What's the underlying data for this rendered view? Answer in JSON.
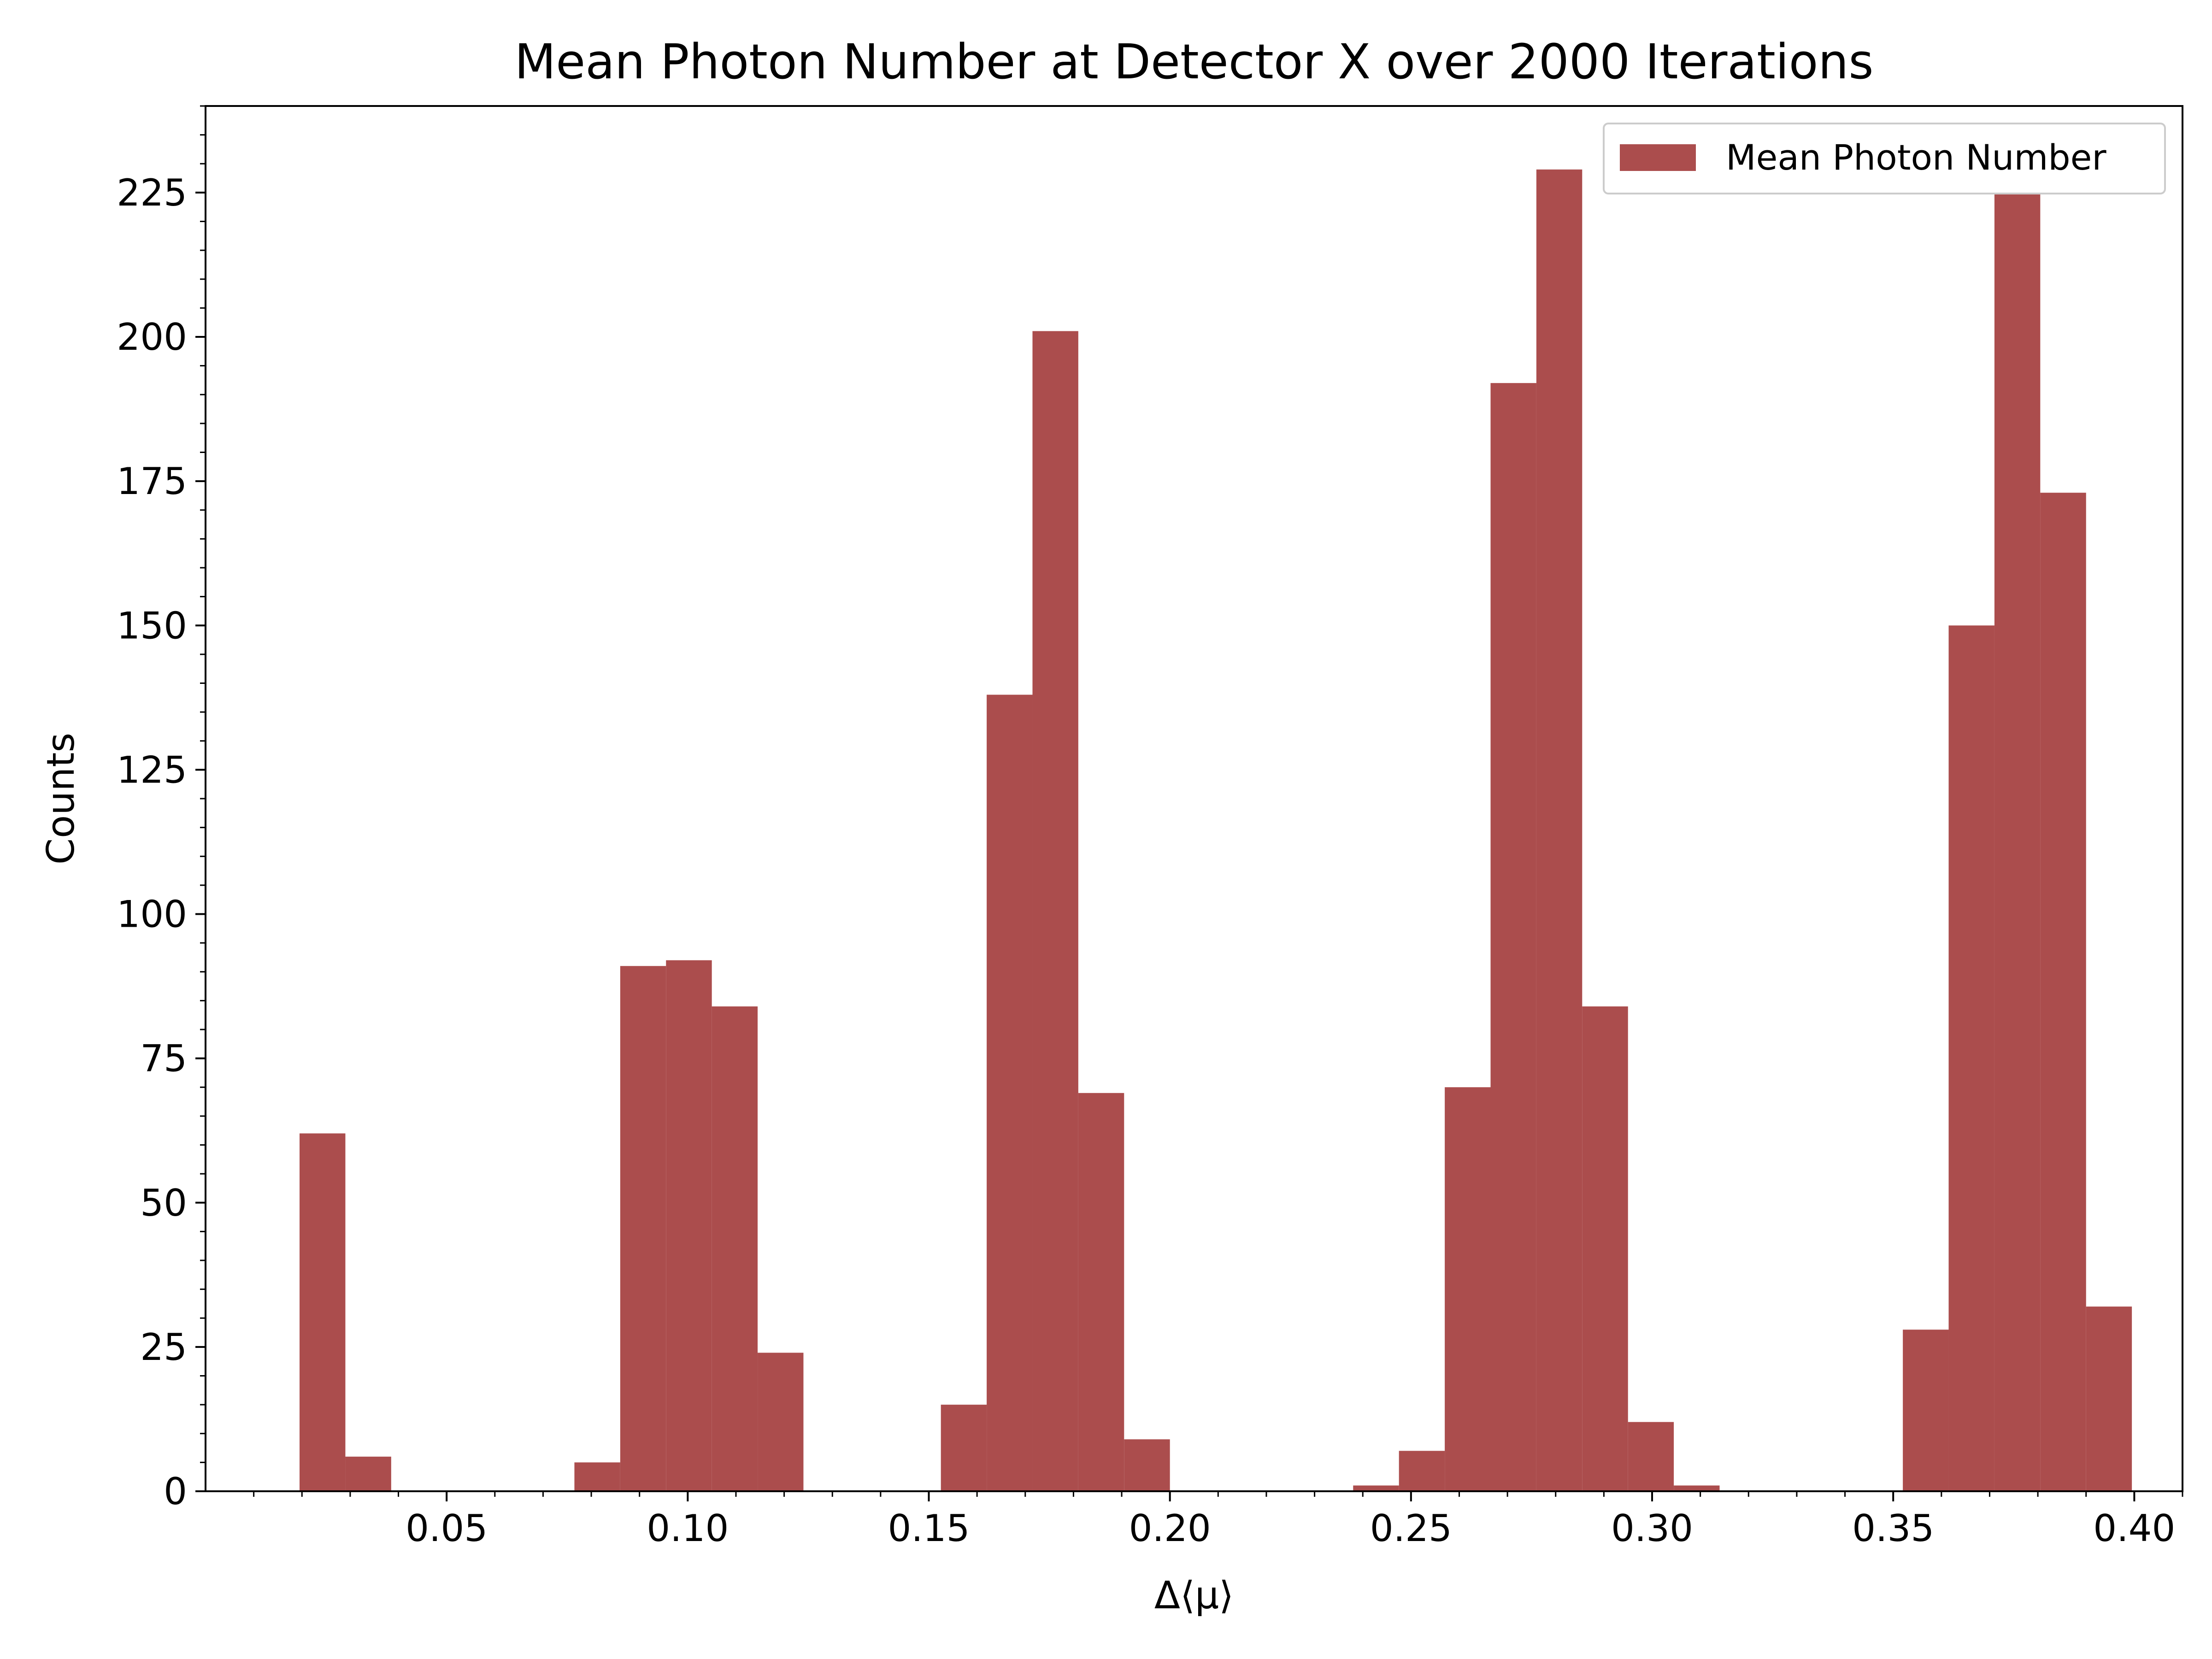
{
  "chart_data": {
    "type": "bar",
    "title": "Mean Photon Number at Detector X over 2000 Iterations",
    "xlabel": "Δ⟨μ⟩",
    "ylabel": "Counts",
    "xlim": [
      0.0,
      0.41
    ],
    "ylim": [
      0,
      240
    ],
    "xticks": [
      "0.05",
      "0.10",
      "0.15",
      "0.20",
      "0.25",
      "0.30",
      "0.35",
      "0.40"
    ],
    "yticks": [
      "0",
      "25",
      "50",
      "75",
      "100",
      "125",
      "150",
      "175",
      "200",
      "225"
    ],
    "grid": false,
    "legend": {
      "position": "top-right",
      "entries": [
        "Mean Photon Number"
      ]
    },
    "series": [
      {
        "name": "Mean Photon Number",
        "color": "#ab4d4d",
        "bin_width": 0.0095,
        "bins": [
          {
            "x0": 0.0195,
            "count": 62
          },
          {
            "x0": 0.029,
            "count": 6
          },
          {
            "x0": 0.0765,
            "count": 5
          },
          {
            "x0": 0.086,
            "count": 91
          },
          {
            "x0": 0.0955,
            "count": 92
          },
          {
            "x0": 0.105,
            "count": 84
          },
          {
            "x0": 0.1145,
            "count": 24
          },
          {
            "x0": 0.1525,
            "count": 15
          },
          {
            "x0": 0.162,
            "count": 138
          },
          {
            "x0": 0.1715,
            "count": 201
          },
          {
            "x0": 0.181,
            "count": 69
          },
          {
            "x0": 0.1905,
            "count": 9
          },
          {
            "x0": 0.238,
            "count": 1
          },
          {
            "x0": 0.2475,
            "count": 7
          },
          {
            "x0": 0.257,
            "count": 70
          },
          {
            "x0": 0.2665,
            "count": 192
          },
          {
            "x0": 0.276,
            "count": 229
          },
          {
            "x0": 0.2855,
            "count": 84
          },
          {
            "x0": 0.295,
            "count": 12
          },
          {
            "x0": 0.3045,
            "count": 1
          },
          {
            "x0": 0.352,
            "count": 28
          },
          {
            "x0": 0.3615,
            "count": 150
          },
          {
            "x0": 0.371,
            "count": 225
          },
          {
            "x0": 0.3805,
            "count": 173
          },
          {
            "x0": 0.39,
            "count": 32
          }
        ]
      }
    ]
  }
}
